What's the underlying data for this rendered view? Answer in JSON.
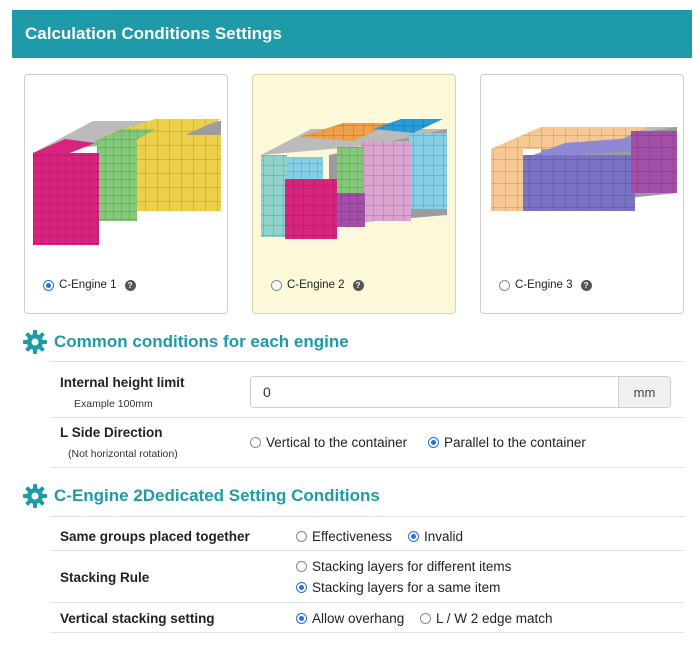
{
  "header": {
    "title": "Calculation Conditions Settings"
  },
  "engines": [
    {
      "label": "C-Engine 1",
      "selected": true
    },
    {
      "label": "C-Engine 2",
      "selected": false
    },
    {
      "label": "C-Engine 3",
      "selected": false
    }
  ],
  "common": {
    "title": "Common conditions for each engine",
    "height_limit": {
      "label": "Internal height limit",
      "example": "Example 100mm",
      "value": "0",
      "unit": "mm"
    },
    "l_side": {
      "label": "L Side Direction",
      "note": "(Not horizontal rotation)",
      "options": [
        "Vertical to the container",
        "Parallel to the container"
      ],
      "selected": "Parallel to the container"
    }
  },
  "engine2": {
    "title": "C-Engine 2Dedicated Setting Conditions",
    "same_groups": {
      "label": "Same groups placed together",
      "options": [
        "Effectiveness",
        "Invalid"
      ],
      "selected": "Invalid"
    },
    "stacking_rule": {
      "label": "Stacking Rule",
      "options": [
        "Stacking layers for different items",
        "Stacking layers for a same item"
      ],
      "selected": "Stacking layers for a same item"
    },
    "vertical": {
      "label": "Vertical stacking setting",
      "options": [
        "Allow overhang",
        "L / W 2 edge match"
      ],
      "selected": "Allow overhang"
    }
  },
  "colors": {
    "accent": "#1e9aa8",
    "selected_card": "#fbf9d9",
    "radio": "#2a6fdb",
    "box_magenta": "#d6257f",
    "box_green": "#84c97a",
    "box_yellow": "#ecd04a",
    "box_orange": "#f0a04a",
    "box_blue": "#2a9bd6",
    "box_lightblue": "#84cfe6",
    "box_teal": "#8fd3cc",
    "box_pink": "#d9a5d0",
    "box_purple": "#a24fa8",
    "box_peach": "#f8c894",
    "box_violet": "#7a72c4"
  }
}
